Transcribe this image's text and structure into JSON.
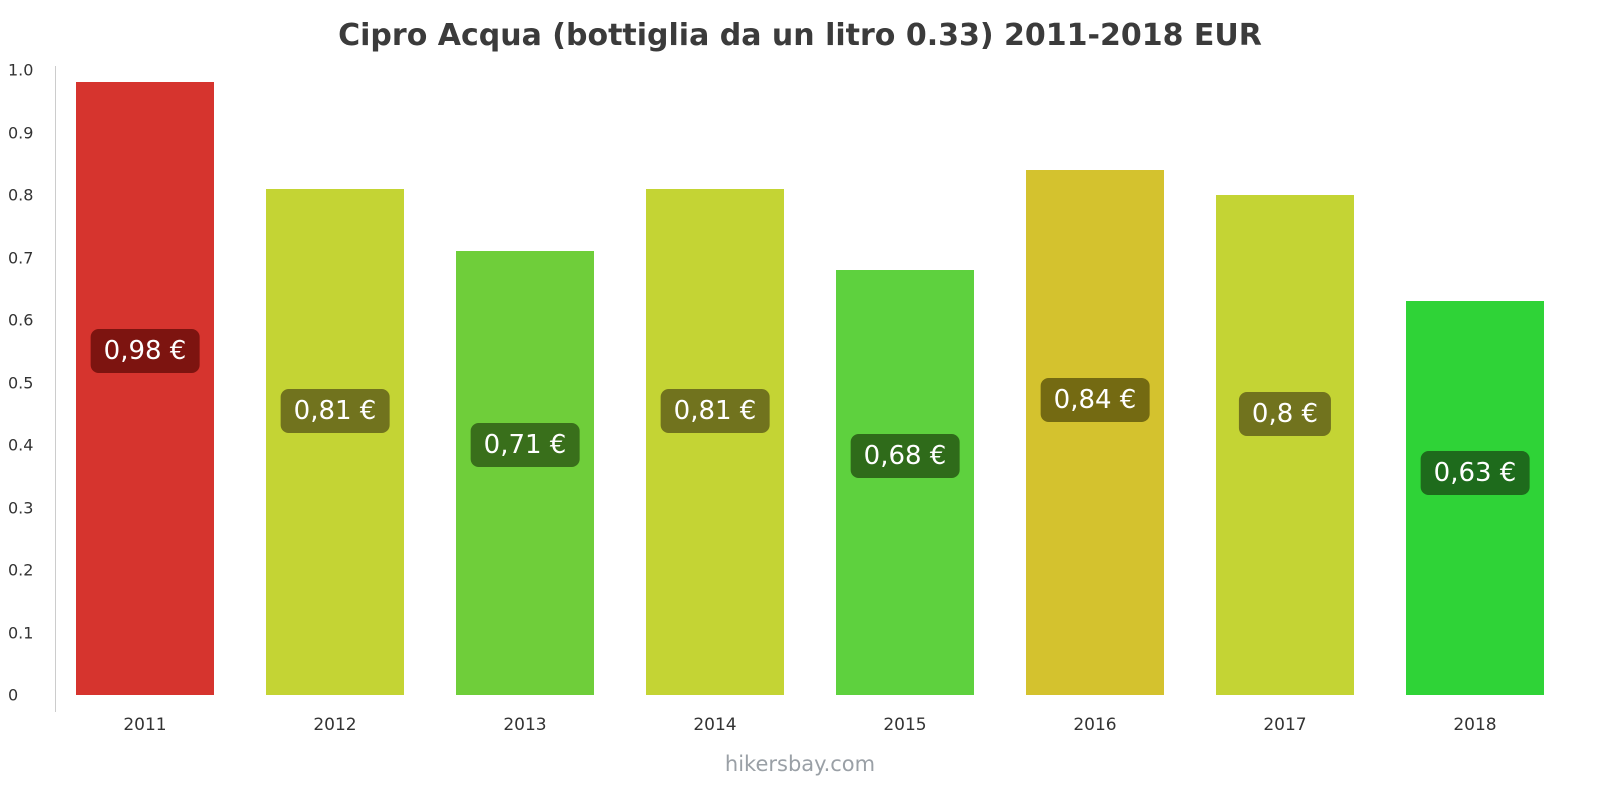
{
  "title": "Cipro Acqua (bottiglia da un litro 0.33) 2011-2018 EUR",
  "footer": "hikersbay.com",
  "chart_data": {
    "type": "bar",
    "title": "Cipro Acqua (bottiglia da un litro 0.33) 2011-2018 EUR",
    "categories": [
      "2011",
      "2012",
      "2013",
      "2014",
      "2015",
      "2016",
      "2017",
      "2018"
    ],
    "values": [
      0.98,
      0.81,
      0.71,
      0.81,
      0.68,
      0.84,
      0.8,
      0.63
    ],
    "value_labels": [
      "0,98 €",
      "0,81 €",
      "0,71 €",
      "0,81 €",
      "0,68 €",
      "0,84 €",
      "0,8 €",
      "0,63 €"
    ],
    "bar_colors": [
      "#d6342e",
      "#c4d434",
      "#6fce3a",
      "#c4d434",
      "#5ed13e",
      "#d4c22e",
      "#c4d434",
      "#2fd337"
    ],
    "badge_colors": [
      "#7d1410",
      "#71731e",
      "#396f1b",
      "#71731e",
      "#2f6b1a",
      "#746a12",
      "#71731e",
      "#1e6b1c"
    ],
    "xlabel": "",
    "ylabel": "",
    "ylim": [
      0,
      1.0
    ],
    "yticks": [
      0,
      0.1,
      0.2,
      0.3,
      0.4,
      0.5,
      0.6,
      0.7,
      0.8,
      0.9,
      1.0
    ],
    "ytick_labels": [
      "0",
      "0.1",
      "0.2",
      "0.3",
      "0.4",
      "0.5",
      "0.6",
      "0.7",
      "0.8",
      "0.9",
      "1.0"
    ],
    "grid": false,
    "legend_position": "none"
  }
}
